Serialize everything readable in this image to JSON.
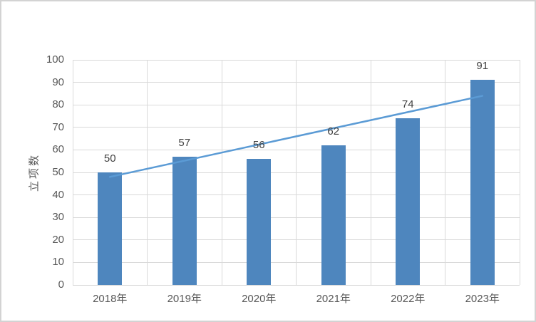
{
  "chart_data": {
    "type": "bar",
    "title": "",
    "categories": [
      "2018年",
      "2019年",
      "2020年",
      "2021年",
      "2022年",
      "2023年"
    ],
    "series": [
      {
        "name": "立项数",
        "type": "bar",
        "values": [
          50,
          57,
          56,
          62,
          74,
          91
        ],
        "color": "#4e86be"
      },
      {
        "name": "linear-trendline",
        "type": "line",
        "start_value": 48,
        "end_value": 84,
        "color": "#5b9bd5"
      }
    ],
    "data_labels": [
      "50",
      "57",
      "56",
      "62",
      "74",
      "91"
    ],
    "xlabel": "",
    "ylabel": "立项数",
    "ylim": [
      0,
      100
    ],
    "ytick_step": 10,
    "grid": true,
    "legend_position": "none"
  },
  "colors": {
    "bar": "#4e86be",
    "trendline": "#5b9bd5",
    "gridline": "#d9d9d9",
    "tick_label": "#595959",
    "data_label": "#404040",
    "border": "#d3d3d3",
    "background": "#ffffff"
  }
}
